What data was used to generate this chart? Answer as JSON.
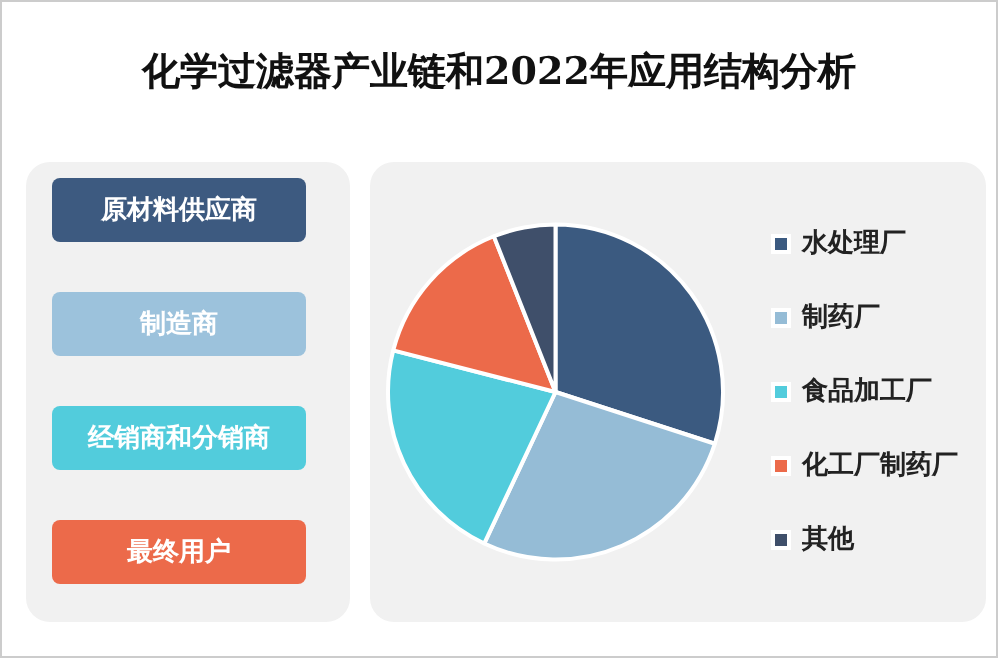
{
  "chart_data": [
    {
      "type": "other",
      "categories": [
        "原材料供应商",
        "制造商",
        "经销商和分销商",
        "最终用户"
      ],
      "colors": [
        "#3d5a80",
        "#9cc2dc",
        "#52ccdc",
        "#ec6a4a"
      ]
    },
    {
      "type": "pie",
      "title": "化学过滤器产业链和2022年应用结构分析",
      "categories": [
        "水处理厂",
        "制药厂",
        "食品加工厂",
        "化工厂制药厂",
        "其他"
      ],
      "values": [
        30,
        27,
        22,
        15,
        6
      ],
      "colors": [
        "#3b5a80",
        "#95bcd6",
        "#52ccdc",
        "#ec6a4a",
        "#3f4f6a"
      ],
      "legend": "right"
    }
  ]
}
